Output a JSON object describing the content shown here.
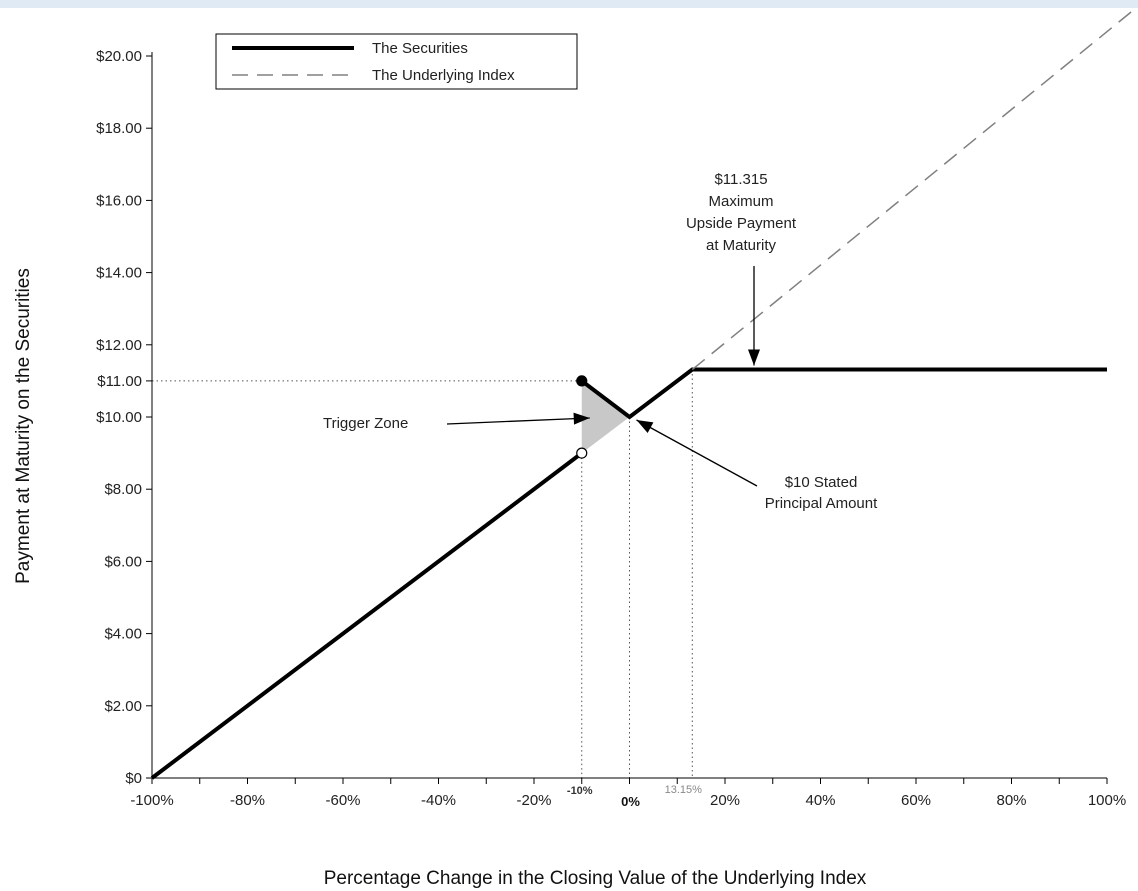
{
  "chart_data": {
    "type": "line",
    "xlabel": "Percentage Change in the Closing Value of the Underlying Index",
    "ylabel": "Payment at Maturity on the Securities",
    "xlim": [
      -100,
      100
    ],
    "ylim": [
      0,
      20
    ],
    "x_tick_values": [
      -100,
      -80,
      -60,
      -40,
      -20,
      20,
      40,
      60,
      80,
      100
    ],
    "x_tick_labels": [
      "-100%",
      "-80%",
      "-60%",
      "-40%",
      "-20%",
      "20%",
      "40%",
      "60%",
      "80%",
      "100%"
    ],
    "y_tick_values": [
      0,
      2,
      4,
      6,
      8,
      10,
      11,
      12,
      14,
      16,
      18,
      20
    ],
    "y_tick_labels": [
      "$0",
      "$2.00",
      "$4.00",
      "$6.00",
      "$8.00",
      "$10.00",
      "$11.00",
      "$12.00",
      "$14.00",
      "$16.00",
      "$18.00",
      "$20.00"
    ],
    "special_x_labels": [
      {
        "x": -10,
        "label": "-10%"
      },
      {
        "x": 0,
        "label": "0%"
      },
      {
        "x": 13.15,
        "label": "13.15%"
      }
    ],
    "legend_position": "top-left",
    "grid": false,
    "series": [
      {
        "name": "The Securities",
        "style": "solid",
        "color": "#000000",
        "segments": [
          [
            [
              -100,
              0
            ],
            [
              -10,
              9.0
            ]
          ],
          [
            [
              -10,
              11.0
            ],
            [
              0,
              10.0
            ],
            [
              13.15,
              11.315
            ],
            [
              100,
              11.315
            ]
          ]
        ]
      },
      {
        "name": "The Underlying Index",
        "style": "dashed",
        "color": "#808080",
        "points": [
          [
            13.15,
            11.315
          ],
          [
            100,
            20
          ]
        ]
      }
    ],
    "markers": [
      {
        "x": -10,
        "y": 11.0,
        "fill": "filled"
      },
      {
        "x": -10,
        "y": 9.0,
        "fill": "open"
      }
    ],
    "annotations": [
      {
        "text": "Trigger Zone"
      },
      {
        "text": "$10 Stated Principal Amount",
        "lines": [
          "$10 Stated",
          "Principal Amount"
        ]
      },
      {
        "text": "$11.315 Maximum Upside Payment at Maturity",
        "lines": [
          "$11.315",
          "Maximum",
          "Upside Payment",
          "at Maturity"
        ]
      }
    ]
  }
}
